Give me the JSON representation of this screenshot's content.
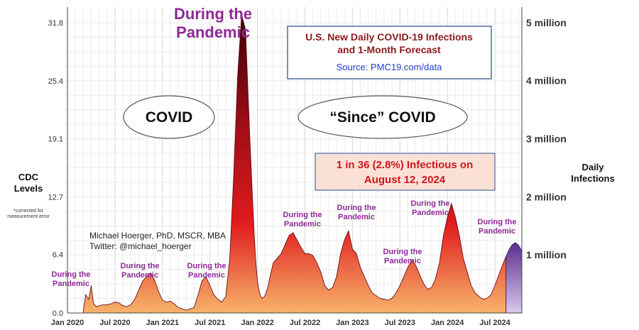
{
  "chart_data": {
    "type": "area",
    "title": "U.S. New Daily COVID-19 Infections and 1-Month Forecast",
    "source": "Source: PMC19.com/data",
    "ylabel_left": "CDC Levels",
    "ylabel_left_note": "*corrected for measurement error",
    "ylabel_right": "Daily Infections",
    "y_left_ticks": [
      "0.0",
      "6.4",
      "12.7",
      "19.1",
      "25.4",
      "31.8"
    ],
    "y_right_ticks": [
      "1 million",
      "2 million",
      "3 million",
      "4 million",
      "5 million"
    ],
    "ylim_cdc": [
      0,
      33.5
    ],
    "x_ticks": [
      "Jan 2020",
      "Jul 2020",
      "Jan 2021",
      "Jul 2021",
      "Jan 2022",
      "Jul 2022",
      "Jan 2023",
      "Jul 2023",
      "Jan 2024",
      "Jul 2024"
    ],
    "grid": true,
    "forecast_starts_month": 55.4,
    "series": [
      {
        "x_month": [
          2.0,
          2.3,
          2.7,
          3.0,
          3.3,
          3.7,
          4.0,
          4.5,
          5.0,
          5.5,
          6.0,
          6.5,
          7.0,
          7.5,
          8.0,
          8.5,
          9.0,
          9.5,
          10.0,
          10.5,
          11.0,
          11.5,
          12.0,
          12.5,
          13.0,
          13.5,
          14.0,
          15.0,
          16.0,
          16.5,
          17.0,
          17.5,
          18.0,
          18.5,
          19.0,
          19.5,
          20.0,
          20.5,
          21.0,
          21.5,
          22.0,
          22.5,
          23.0,
          23.3,
          23.6,
          23.8,
          24.0,
          24.2,
          24.4,
          24.6,
          24.8,
          25.0,
          25.3,
          25.6,
          26.0,
          26.5,
          27.0,
          27.5,
          28.0,
          28.5,
          29.0,
          29.5,
          30.0,
          30.5,
          31.0,
          31.5,
          32.0,
          32.5,
          33.0,
          33.5,
          34.0,
          34.5,
          35.0,
          35.5,
          36.0,
          36.5,
          37.0,
          37.5,
          38.0,
          38.5,
          39.0,
          39.5,
          40.0,
          40.5,
          41.0,
          41.5,
          42.0,
          42.5,
          43.0,
          43.5,
          44.0,
          44.5,
          45.0,
          45.5,
          46.0,
          46.5,
          47.0,
          47.5,
          48.0,
          48.5,
          49.0,
          49.5,
          50.0,
          50.5,
          51.0,
          51.5,
          52.0,
          52.5,
          53.0,
          53.5,
          54.0,
          54.5,
          55.0,
          55.4,
          55.8,
          56.2,
          56.6,
          57.0,
          57.4
        ],
        "cdc_level": [
          0.2,
          2.0,
          1.5,
          3.0,
          1.0,
          0.7,
          0.8,
          0.9,
          0.9,
          1.0,
          1.2,
          1.1,
          0.8,
          0.7,
          0.9,
          1.5,
          2.5,
          3.5,
          4.0,
          4.4,
          3.6,
          2.4,
          1.4,
          1.2,
          1.3,
          1.0,
          0.6,
          0.3,
          0.6,
          2.0,
          3.5,
          4.0,
          3.0,
          2.0,
          1.5,
          1.2,
          1.8,
          6.0,
          15.0,
          26.0,
          32.7,
          31.0,
          20.0,
          14.0,
          8.5,
          5.5,
          3.5,
          2.5,
          1.8,
          1.6,
          1.7,
          2.0,
          2.8,
          4.0,
          5.5,
          6.0,
          6.5,
          7.5,
          8.5,
          8.8,
          8.0,
          7.2,
          6.5,
          6.5,
          6.3,
          5.5,
          4.5,
          3.0,
          2.5,
          2.8,
          4.0,
          6.5,
          8.0,
          9.0,
          7.0,
          6.5,
          5.0,
          4.0,
          3.0,
          2.2,
          1.9,
          1.6,
          1.5,
          1.4,
          1.6,
          2.2,
          3.0,
          4.0,
          5.0,
          5.8,
          5.2,
          4.2,
          3.2,
          2.6,
          2.8,
          3.8,
          5.5,
          8.5,
          10.5,
          12.0,
          10.5,
          8.5,
          6.0,
          4.5,
          3.0,
          2.2,
          1.8,
          1.5,
          1.6,
          2.0,
          3.0,
          4.2,
          5.3,
          6.2,
          7.0,
          7.5,
          7.7,
          7.4,
          6.8,
          6.1,
          5.6,
          5.0,
          4.5
        ]
      }
    ],
    "annotations": [
      {
        "text": "During the Pandemic",
        "big": true
      },
      {
        "text": "During the Pandemic"
      },
      {
        "text": "During the Pandemic"
      },
      {
        "text": "During the Pandemic"
      },
      {
        "text": "During the Pandemic"
      },
      {
        "text": "During the Pandemic"
      },
      {
        "text": "During the Pandemic"
      },
      {
        "text": "During the Pandemic"
      },
      {
        "text": "During the Pandemic"
      }
    ],
    "ellipses": [
      "COVID",
      "“Since” COVID"
    ],
    "callout": "1 in 36 (2.8%) Infectious on August 12, 2024",
    "credit": [
      "Michael Hoerger, PhD, MSCR, MBA",
      "Twitter: @michael_hoerger"
    ]
  },
  "colors": {
    "annotation": "#8e2a96",
    "title": "#8b1a1a",
    "source": "#1f3ccf",
    "callout_bg": "#fbe0d6",
    "callout_text": "#d0161b",
    "box_border": "#4a6aa5",
    "area_top": "#3a0008",
    "area_mid": "#d9141a",
    "area_bottom": "#f7b36b",
    "forecast_top": "#5a2e8e",
    "forecast_bottom": "#d6c4e8"
  }
}
